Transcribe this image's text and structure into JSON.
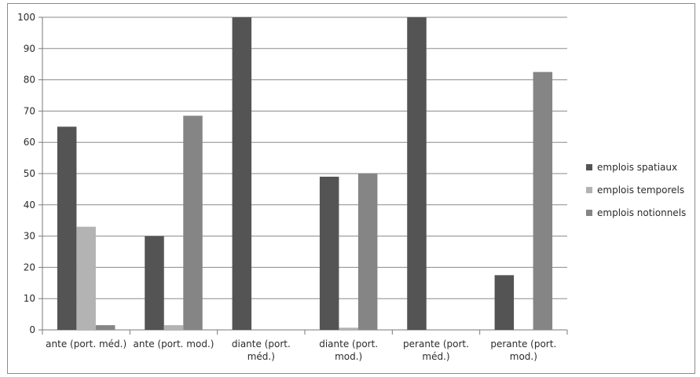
{
  "chart_data": {
    "type": "bar",
    "categories": [
      [
        "ante (port. méd.)"
      ],
      [
        "ante (port. mod.)"
      ],
      [
        "diante (port.",
        "méd.)"
      ],
      [
        "diante (port.",
        "mod.)"
      ],
      [
        "perante (port.",
        "méd.)"
      ],
      [
        "perante (port.",
        "mod.)"
      ]
    ],
    "series": [
      {
        "name": "emplois spatiaux",
        "color": "#545454",
        "values": [
          65,
          30,
          100,
          49,
          100,
          17.5
        ]
      },
      {
        "name": "emplois temporels",
        "color": "#b3b3b3",
        "values": [
          33,
          1.5,
          0,
          0.7,
          0,
          0
        ]
      },
      {
        "name": "emplois notionnels",
        "color": "#858585",
        "values": [
          1.5,
          68.5,
          0,
          50,
          0,
          82.5
        ]
      }
    ],
    "ylim": [
      0,
      100
    ],
    "yticks": [
      0,
      10,
      20,
      30,
      40,
      50,
      60,
      70,
      80,
      90,
      100
    ],
    "grid": true,
    "legend": "right"
  }
}
